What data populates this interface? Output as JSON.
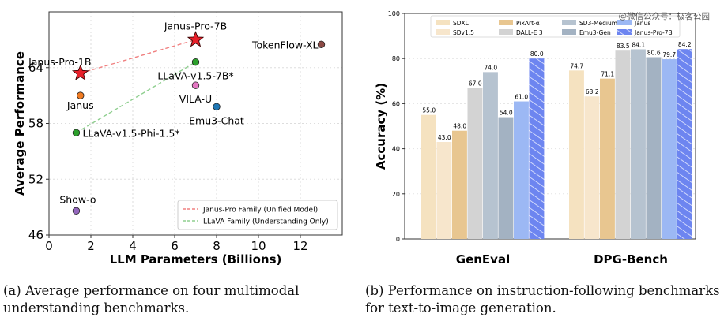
{
  "chart_data": [
    {
      "type": "scatter",
      "xlabel": "LLM Parameters (Billions)",
      "ylabel": "Average Performance",
      "xlim": [
        0,
        14
      ],
      "ylim": [
        46,
        70
      ],
      "xticks": [
        0,
        2,
        4,
        6,
        8,
        10,
        12
      ],
      "yticks": [
        46,
        52,
        58,
        64
      ],
      "grid": true,
      "legend_position": "bottom-right",
      "points": [
        {
          "label": "Janus-Pro-7B",
          "x": 7,
          "y": 67.0,
          "marker": "star",
          "color": "#e8202a"
        },
        {
          "label": "Janus-Pro-1B",
          "x": 1.5,
          "y": 63.4,
          "marker": "star",
          "color": "#e8202a"
        },
        {
          "label": "TokenFlow-XL",
          "x": 13,
          "y": 66.5,
          "marker": "circle",
          "color": "#8c4a45"
        },
        {
          "label": "LLaVA-v1.5-7B*",
          "x": 7,
          "y": 64.6,
          "marker": "circle",
          "color": "#2ca02c"
        },
        {
          "label": "VILA-U",
          "x": 7,
          "y": 62.1,
          "marker": "circle",
          "color": "#e377c2"
        },
        {
          "label": "Janus",
          "x": 1.5,
          "y": 61.0,
          "marker": "circle",
          "color": "#f07b22"
        },
        {
          "label": "Emu3-Chat",
          "x": 8,
          "y": 59.8,
          "marker": "circle",
          "color": "#1f77b4"
        },
        {
          "label": "LLaVA-v1.5-Phi-1.5*",
          "x": 1.3,
          "y": 57.0,
          "marker": "circle",
          "color": "#2ca02c"
        },
        {
          "label": "Show-o",
          "x": 1.3,
          "y": 48.6,
          "marker": "circle",
          "color": "#9467bd"
        }
      ],
      "series": [
        {
          "name": "Janus-Pro Family (Unified Model)",
          "style": "dashed",
          "color": "#f08080",
          "x": [
            1.5,
            7
          ],
          "y": [
            63.4,
            67.0
          ]
        },
        {
          "name": "LLaVA Family (Understanding Only)",
          "style": "dashed",
          "color": "#8fcf8f",
          "x": [
            1.3,
            7
          ],
          "y": [
            57.0,
            64.6
          ]
        }
      ],
      "caption": "(a) Average performance on four multimodal understanding benchmarks."
    },
    {
      "type": "bar",
      "ylabel": "Accuracy (%)",
      "ylim": [
        0,
        100
      ],
      "yticks": [
        0,
        20,
        40,
        60,
        80,
        100
      ],
      "grid": true,
      "legend_position": "top",
      "categories": [
        "GenEval",
        "DPG-Bench"
      ],
      "series": [
        {
          "name": "SDXL",
          "color": "#f5e2c0",
          "values": [
            55.0,
            74.7
          ]
        },
        {
          "name": "SDv1.5",
          "color": "#f7e6cc",
          "values": [
            43.0,
            63.2
          ]
        },
        {
          "name": "PixArt-α",
          "color": "#e8c690",
          "values": [
            48.0,
            71.1
          ]
        },
        {
          "name": "DALL-E 3",
          "color": "#d3d3d3",
          "values": [
            67.0,
            83.5
          ]
        },
        {
          "name": "SD3-Medium",
          "color": "#b6c3d0",
          "values": [
            74.0,
            84.1
          ]
        },
        {
          "name": "Emu3-Gen",
          "color": "#a3b2c2",
          "values": [
            54.0,
            80.6
          ]
        },
        {
          "name": "Janus",
          "color": "#9cb8f4",
          "values": [
            61.0,
            79.7
          ]
        },
        {
          "name": "Janus-Pro-7B",
          "color": "#6d85f0",
          "hatch": true,
          "values": [
            80.0,
            84.2
          ]
        }
      ],
      "caption": "(b) Performance on instruction-following benchmarks for text-to-image generation."
    }
  ],
  "watermark": "@微信公众号：极客公园"
}
